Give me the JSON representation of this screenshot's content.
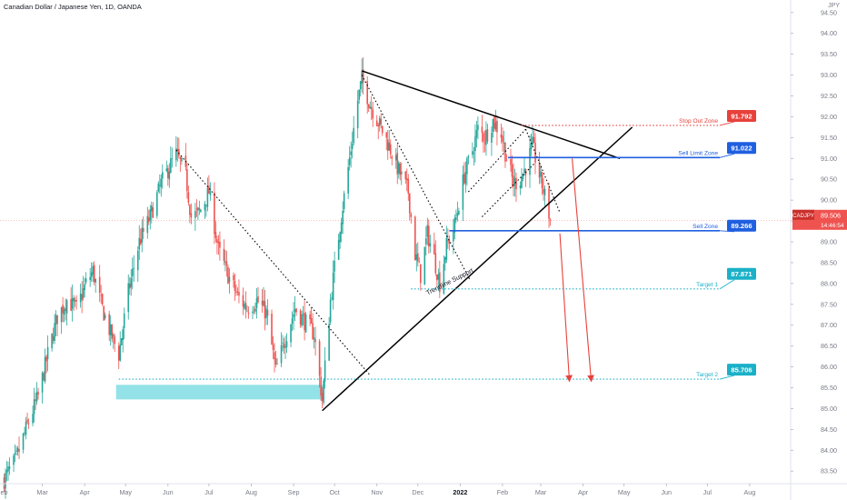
{
  "header": {
    "title": "Canadian Dollar / Japanese Yen, 1D, OANDA",
    "currency": "JPY"
  },
  "chart_data": {
    "type": "candlestick",
    "symbol": "CADJPY",
    "timeframe": "1D",
    "y_ticks": [
      83.5,
      84.0,
      84.5,
      85.0,
      85.5,
      86.0,
      86.5,
      87.0,
      87.5,
      88.0,
      88.5,
      89.0,
      89.5,
      90.0,
      90.5,
      91.0,
      91.5,
      92.0,
      92.5,
      93.0,
      93.5,
      94.0,
      94.5
    ],
    "ylim": [
      83.2,
      94.8
    ],
    "x_ticks": [
      {
        "label": "eb",
        "date": "2021-02-01"
      },
      {
        "label": "Mar",
        "date": "2021-03-01"
      },
      {
        "label": "Apr",
        "date": "2021-04-01"
      },
      {
        "label": "May",
        "date": "2021-05-01"
      },
      {
        "label": "Jun",
        "date": "2021-06-01"
      },
      {
        "label": "Jul",
        "date": "2021-07-01"
      },
      {
        "label": "Aug",
        "date": "2021-08-01"
      },
      {
        "label": "Sep",
        "date": "2021-09-01"
      },
      {
        "label": "Oct",
        "date": "2021-10-01"
      },
      {
        "label": "Nov",
        "date": "2021-11-01"
      },
      {
        "label": "Dec",
        "date": "2021-12-01"
      },
      {
        "label": "2022",
        "date": "2022-01-01"
      },
      {
        "label": "Feb",
        "date": "2022-02-01"
      },
      {
        "label": "Mar",
        "date": "2022-03-01"
      },
      {
        "label": "Apr",
        "date": "2022-04-01"
      },
      {
        "label": "May",
        "date": "2022-05-01"
      },
      {
        "label": "Jun",
        "date": "2022-06-01"
      },
      {
        "label": "Jul",
        "date": "2022-07-01"
      },
      {
        "label": "Aug",
        "date": "2022-08-01"
      }
    ],
    "xlim": [
      "2021-01-29",
      "2022-08-31"
    ],
    "price_path": [
      [
        "2021-02-01",
        83.3
      ],
      [
        "2021-02-10",
        83.8
      ],
      [
        "2021-02-18",
        84.6
      ],
      [
        "2021-02-26",
        85.3
      ],
      [
        "2021-03-05",
        86.3
      ],
      [
        "2021-03-12",
        87.2
      ],
      [
        "2021-03-19",
        87.6
      ],
      [
        "2021-03-26",
        87.4
      ],
      [
        "2021-04-02",
        88.0
      ],
      [
        "2021-04-07",
        88.3
      ],
      [
        "2021-04-13",
        87.5
      ],
      [
        "2021-04-20",
        86.8
      ],
      [
        "2021-04-26",
        86.3
      ],
      [
        "2021-05-03",
        87.8
      ],
      [
        "2021-05-11",
        89.0
      ],
      [
        "2021-05-19",
        89.6
      ],
      [
        "2021-05-27",
        90.4
      ],
      [
        "2021-06-02",
        90.8
      ],
      [
        "2021-06-07",
        91.1
      ],
      [
        "2021-06-14",
        90.6
      ],
      [
        "2021-06-18",
        89.6
      ],
      [
        "2021-06-24",
        89.7
      ],
      [
        "2021-07-01",
        90.2
      ],
      [
        "2021-07-08",
        88.8
      ],
      [
        "2021-07-15",
        88.2
      ],
      [
        "2021-07-22",
        87.7
      ],
      [
        "2021-07-29",
        87.4
      ],
      [
        "2021-08-05",
        87.6
      ],
      [
        "2021-08-12",
        87.3
      ],
      [
        "2021-08-19",
        85.9
      ],
      [
        "2021-08-26",
        86.7
      ],
      [
        "2021-09-02",
        87.4
      ],
      [
        "2021-09-09",
        87.1
      ],
      [
        "2021-09-16",
        86.8
      ],
      [
        "2021-09-22",
        85.2
      ],
      [
        "2021-09-28",
        87.6
      ],
      [
        "2021-10-05",
        89.4
      ],
      [
        "2021-10-12",
        91.0
      ],
      [
        "2021-10-18",
        92.4
      ],
      [
        "2021-10-21",
        92.9
      ],
      [
        "2021-10-27",
        92.3
      ],
      [
        "2021-11-03",
        91.8
      ],
      [
        "2021-11-10",
        91.3
      ],
      [
        "2021-11-17",
        90.7
      ],
      [
        "2021-11-24",
        90.2
      ],
      [
        "2021-11-29",
        88.7
      ],
      [
        "2021-12-03",
        88.2
      ],
      [
        "2021-12-08",
        89.2
      ],
      [
        "2021-12-13",
        88.6
      ],
      [
        "2021-12-17",
        88.0
      ],
      [
        "2021-12-22",
        88.9
      ],
      [
        "2021-12-28",
        89.4
      ],
      [
        "2022-01-04",
        90.6
      ],
      [
        "2022-01-10",
        91.2
      ],
      [
        "2022-01-14",
        91.7
      ],
      [
        "2022-01-19",
        91.5
      ],
      [
        "2022-01-25",
        91.9
      ],
      [
        "2022-01-31",
        91.6
      ],
      [
        "2022-02-04",
        91.0
      ],
      [
        "2022-02-09",
        90.4
      ],
      [
        "2022-02-14",
        90.5
      ],
      [
        "2022-02-18",
        90.8
      ],
      [
        "2022-02-23",
        91.3
      ],
      [
        "2022-02-28",
        90.6
      ],
      [
        "2022-03-04",
        90.1
      ],
      [
        "2022-03-08",
        89.51
      ]
    ],
    "last_price": {
      "label": "CADJPY",
      "value": "89.506",
      "countdown": "14:46:54",
      "y": 89.506
    },
    "trendlines": [
      {
        "name": "triangle-upper",
        "style": "solid",
        "color": "#000000",
        "x1": "2021-10-21",
        "y1": 93.1,
        "x2": "2022-04-28",
        "y2": 91.0
      },
      {
        "name": "triangle-lower",
        "style": "solid",
        "color": "#000000",
        "x1": "2021-09-22",
        "y1": 84.95,
        "x2": "2022-05-07",
        "y2": 91.75
      },
      {
        "name": "dotted-downtrend-1",
        "style": "dotted",
        "color": "#000000",
        "x1": "2021-06-07",
        "y1": 91.2,
        "x2": "2021-10-27",
        "y2": 85.8
      },
      {
        "name": "dotted-downtrend-2",
        "style": "dotted",
        "color": "#000000",
        "x1": "2021-10-21",
        "y1": 93.0,
        "x2": "2022-01-08",
        "y2": 88.1
      },
      {
        "name": "channel-top",
        "style": "dotted",
        "color": "#000000",
        "x1": "2022-01-07",
        "y1": 90.2,
        "x2": "2022-02-18",
        "y2": 91.7
      },
      {
        "name": "channel-bottom",
        "style": "dotted",
        "color": "#000000",
        "x1": "2022-01-17",
        "y1": 89.6,
        "x2": "2022-02-25",
        "y2": 90.9
      },
      {
        "name": "channel-right",
        "style": "dotted",
        "color": "#000000",
        "x1": "2022-02-18",
        "y1": 91.7,
        "x2": "2022-03-15",
        "y2": 89.7
      }
    ],
    "zones": [
      {
        "name": "stop-out-zone",
        "label": "Stop Out Zone",
        "price": "91.792",
        "value": 91.792,
        "color": "#e8413b",
        "style": "dotted",
        "x_start": "2022-02-15"
      },
      {
        "name": "sell-limit-zone",
        "label": "Sell Limit Zone",
        "price": "91.022",
        "value": 91.022,
        "color": "#1f5fe0",
        "style": "solid",
        "x_start": "2022-02-05"
      },
      {
        "name": "sell-zone",
        "label": "Sell Zone",
        "price": "89.266",
        "value": 89.266,
        "color": "#1f5fe0",
        "style": "solid",
        "x_start": "2021-12-24"
      },
      {
        "name": "target-1",
        "label": "Target 1",
        "price": "87.871",
        "value": 87.871,
        "color": "#1ab1c8",
        "style": "dotted",
        "x_start": "2021-11-26"
      },
      {
        "name": "target-2",
        "label": "Target 2",
        "price": "85.706",
        "value": 85.706,
        "color": "#1ab1c8",
        "style": "dotted",
        "x_start": "2021-04-26"
      }
    ],
    "support_box": {
      "x1": "2021-04-24",
      "x2": "2021-09-23",
      "y1": 85.57,
      "y2": 85.22,
      "color": "#7fdde3"
    },
    "arrows": [
      {
        "name": "arrow-target-2-left",
        "color": "#e8413b",
        "x1": "2022-03-15",
        "y1": 89.2,
        "x2": "2022-03-22",
        "y2": 85.65
      },
      {
        "name": "arrow-target-2-right",
        "color": "#e8413b",
        "x1": "2022-03-24",
        "y1": 91.0,
        "x2": "2022-04-07",
        "y2": 85.65
      }
    ],
    "annotations": [
      {
        "name": "trendline-support-label",
        "text": "Trendline Support",
        "x": "2021-12-25",
        "y": 88.0,
        "angle": -27
      }
    ],
    "colors": {
      "up": "#26a69a",
      "down": "#ef5350",
      "axis_text": "#787b86"
    }
  }
}
